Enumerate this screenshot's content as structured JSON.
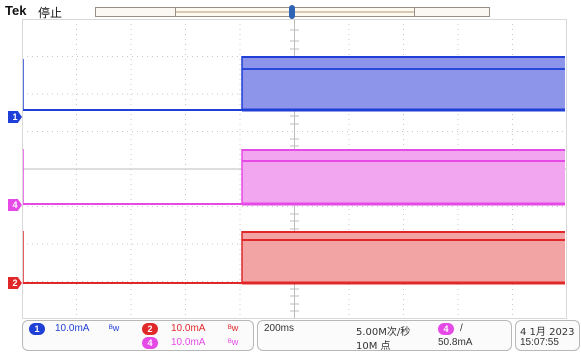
{
  "header": {
    "brand": "Tek",
    "state": "停止"
  },
  "channels": {
    "ch1": {
      "badge": "1",
      "scale": "10.0mA",
      "bw_icon": "ᴮw",
      "color": "#1f3fd6"
    },
    "ch2": {
      "badge": "2",
      "scale": "10.0mA",
      "bw_icon": "ᴮw",
      "color": "#e0282a"
    },
    "ch4": {
      "badge": "4",
      "scale": "10.0mA",
      "bw_icon": "ᴮw",
      "color": "#e64ae6"
    }
  },
  "timebase": {
    "scale": "200ms",
    "sample_rate": "5.00M次/秒",
    "record_length": "10M 点"
  },
  "trigger": {
    "source_badge": "4",
    "slope": "/",
    "level": "50.8mA"
  },
  "datetime": {
    "date": "4 1月 2023",
    "time": "15:07:55"
  }
}
